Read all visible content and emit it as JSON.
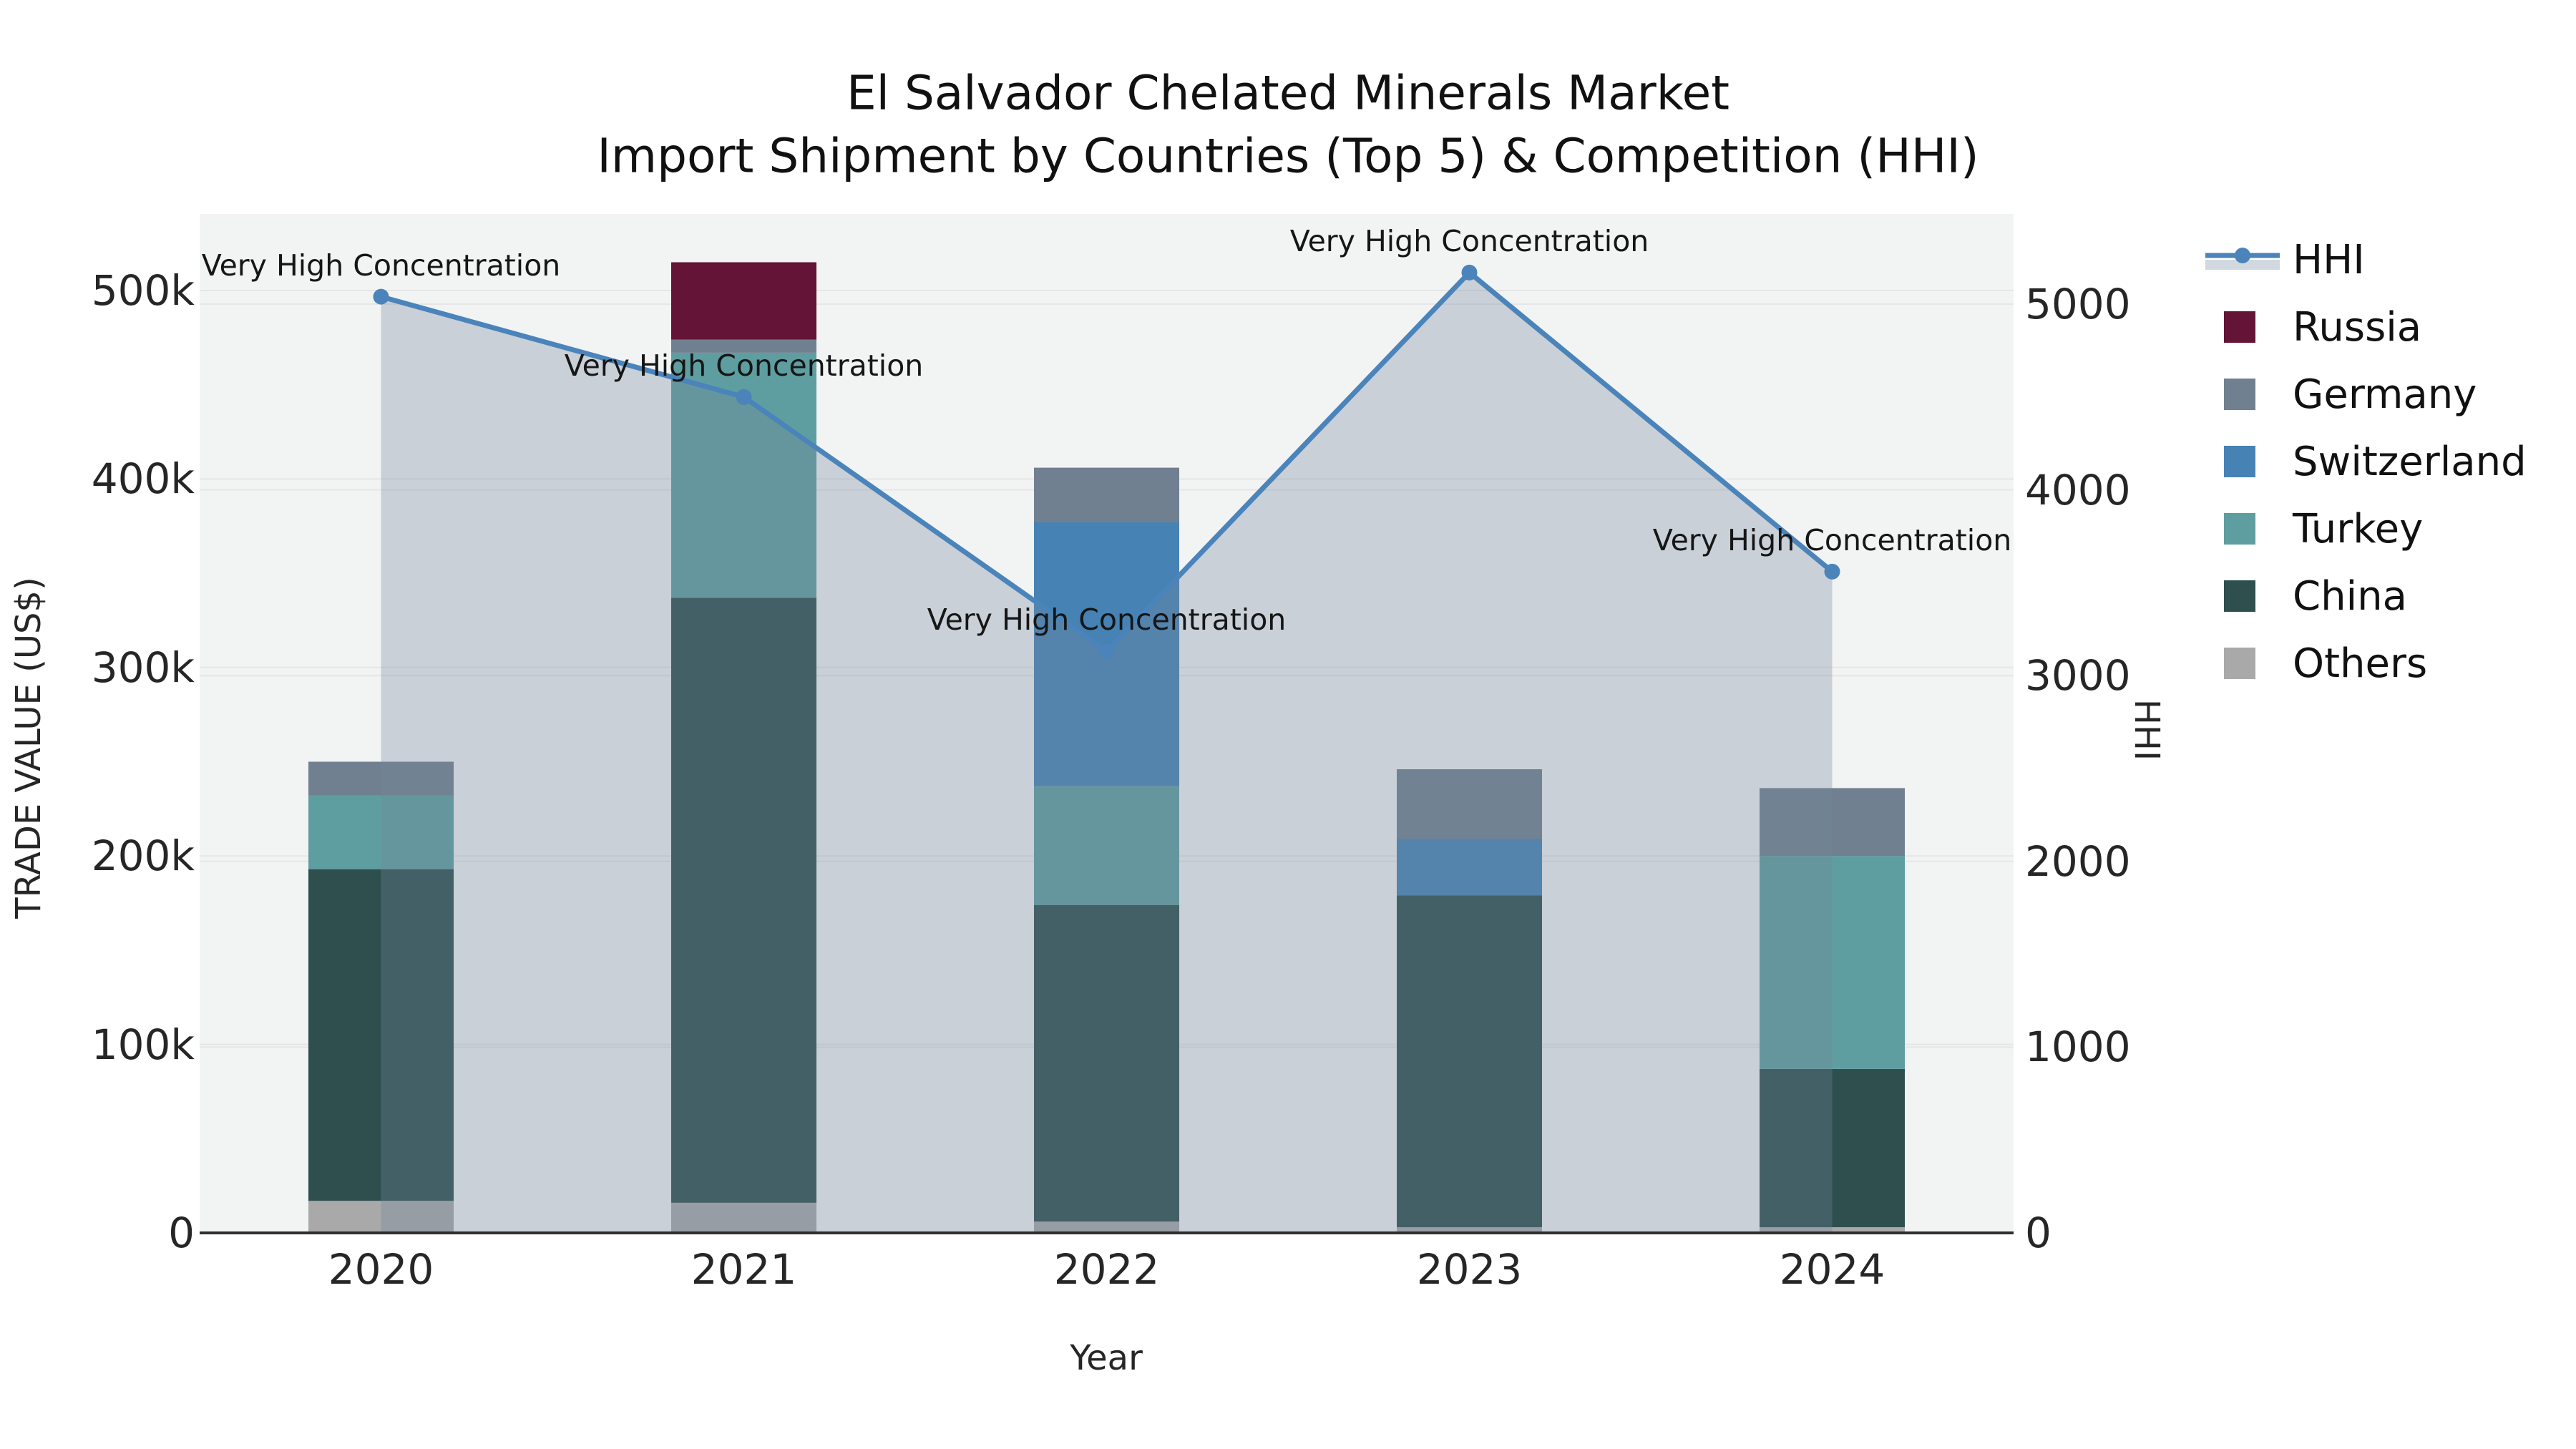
{
  "title": {
    "line1": "El Salvador Chelated Minerals Market",
    "line2": "Import Shipment by Countries (Top 5) & Competition (HHI)"
  },
  "axes": {
    "x": {
      "title": "Year",
      "categories": [
        "2020",
        "2021",
        "2022",
        "2023",
        "2024"
      ]
    },
    "y_left": {
      "title": "TRADE VALUE (US$)",
      "ticks": [
        {
          "label": "0",
          "value": 0
        },
        {
          "label": "100k",
          "value": 100000
        },
        {
          "label": "200k",
          "value": 200000
        },
        {
          "label": "300k",
          "value": 300000
        },
        {
          "label": "400k",
          "value": 400000
        },
        {
          "label": "500k",
          "value": 500000
        }
      ],
      "range": [
        0,
        540000
      ]
    },
    "y_right": {
      "title": "HHI",
      "ticks": [
        {
          "label": "0",
          "value": 0
        },
        {
          "label": "1000",
          "value": 1000
        },
        {
          "label": "2000",
          "value": 2000
        },
        {
          "label": "3000",
          "value": 3000
        },
        {
          "label": "4000",
          "value": 4000
        },
        {
          "label": "5000",
          "value": 5000
        }
      ],
      "range": [
        0,
        5480
      ]
    }
  },
  "legend": {
    "items": [
      {
        "label": "HHI",
        "type": "line"
      },
      {
        "label": "Russia",
        "type": "swatch",
        "color": "#641437"
      },
      {
        "label": "Germany",
        "type": "swatch",
        "color": "#708090"
      },
      {
        "label": "Switzerland",
        "type": "swatch",
        "color": "#4682B4"
      },
      {
        "label": "Turkey",
        "type": "swatch",
        "color": "#5F9EA0"
      },
      {
        "label": "China",
        "type": "swatch",
        "color": "#2F4F4F"
      },
      {
        "label": "Others",
        "type": "swatch",
        "color": "#A9A9A9"
      }
    ]
  },
  "annotations": {
    "text": "Very High Concentration",
    "years": [
      "2020",
      "2021",
      "2022",
      "2023",
      "2024"
    ]
  },
  "chart_data": {
    "type": "bar+line",
    "title": "El Salvador Chelated Minerals Market — Import Shipment by Countries (Top 5) & Competition (HHI)",
    "categories": [
      "2020",
      "2021",
      "2022",
      "2023",
      "2024"
    ],
    "xlabel": "Year",
    "ylabel_left": "TRADE VALUE (US$)",
    "ylabel_right": "HHI",
    "bar_mode": "stacked",
    "grid": true,
    "legend_position": "right",
    "series": [
      {
        "name": "Others",
        "color": "#A9A9A9",
        "values": [
          17000,
          16000,
          6000,
          3000,
          3000
        ]
      },
      {
        "name": "China",
        "color": "#2F4F4F",
        "values": [
          176000,
          321000,
          168000,
          176000,
          84000
        ]
      },
      {
        "name": "Turkey",
        "color": "#5F9EA0",
        "values": [
          39000,
          130000,
          63000,
          0,
          113000
        ]
      },
      {
        "name": "Switzerland",
        "color": "#4682B4",
        "values": [
          0,
          0,
          140000,
          30000,
          0
        ]
      },
      {
        "name": "Germany",
        "color": "#708090",
        "values": [
          18000,
          7000,
          29000,
          37000,
          36000
        ]
      },
      {
        "name": "Russia",
        "color": "#641437",
        "values": [
          0,
          41000,
          0,
          0,
          0
        ]
      }
    ],
    "bar_totals": [
      250000,
      515000,
      406000,
      246000,
      236000
    ],
    "line_series": {
      "name": "HHI",
      "axis": "right",
      "color": "#4A84BA",
      "fill": "tozeroy",
      "fill_color": "rgba(115,135,155,0.32)",
      "values": [
        5040,
        4500,
        3130,
        5170,
        3560
      ]
    },
    "ylim_left": [
      0,
      540000
    ],
    "ylim_right": [
      0,
      5480
    ]
  },
  "colors": {
    "page_bg": "#ffffff",
    "plot_bg": "#f2f3f3",
    "grid": "#e6e6e6",
    "axis_line": "#2f2f2f",
    "text": "#1f1f1f"
  }
}
